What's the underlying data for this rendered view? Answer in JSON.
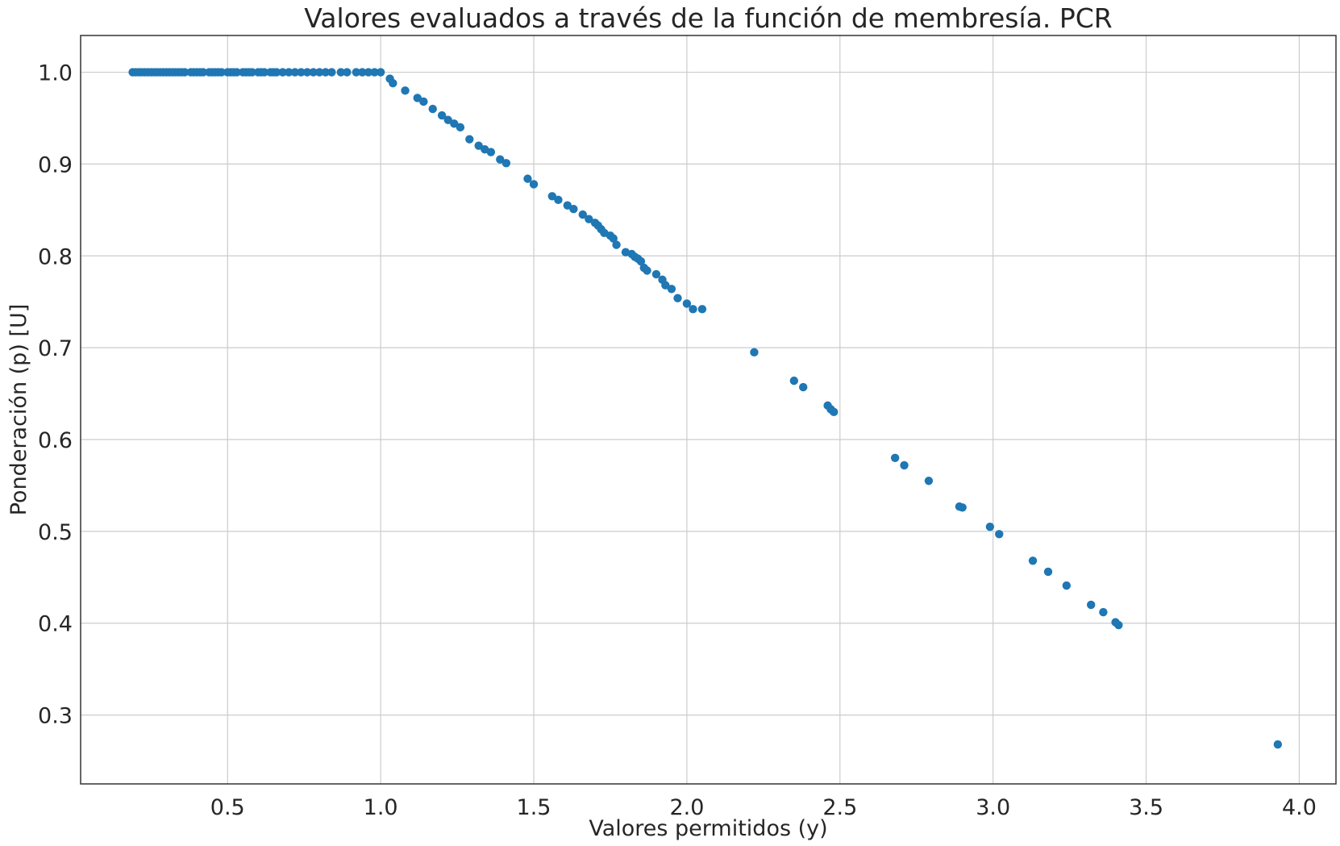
{
  "chart_data": {
    "type": "scatter",
    "title": "Valores evaluados a través de la función de membresía. PCR",
    "xlabel": "Valores permitidos (y)",
    "ylabel": "Ponderación (p) [U]",
    "xlim": [
      0.02,
      4.12
    ],
    "ylim": [
      0.225,
      1.04
    ],
    "xticks": [
      0.5,
      1.0,
      1.5,
      2.0,
      2.5,
      3.0,
      3.5,
      4.0
    ],
    "xtick_labels": [
      "0.5",
      "1.0",
      "1.5",
      "2.0",
      "2.5",
      "3.0",
      "3.5",
      "4.0"
    ],
    "yticks": [
      0.3,
      0.4,
      0.5,
      0.6,
      0.7,
      0.8,
      0.9,
      1.0
    ],
    "ytick_labels": [
      "0.3",
      "0.4",
      "0.5",
      "0.6",
      "0.7",
      "0.8",
      "0.9",
      "1.0"
    ],
    "grid": true,
    "marker_color": "#1f77b4",
    "series": [
      {
        "x": [
          0.19,
          0.2,
          0.21,
          0.22,
          0.23,
          0.24,
          0.25,
          0.26,
          0.27,
          0.28,
          0.29,
          0.3,
          0.31,
          0.32,
          0.33,
          0.34,
          0.35,
          0.36,
          0.38,
          0.39,
          0.4,
          0.41,
          0.42,
          0.44,
          0.45,
          0.46,
          0.47,
          0.48,
          0.5,
          0.51,
          0.52,
          0.53,
          0.55,
          0.56,
          0.57,
          0.58,
          0.6,
          0.61,
          0.62,
          0.64,
          0.65,
          0.66,
          0.68,
          0.7,
          0.72,
          0.74,
          0.76,
          0.78,
          0.8,
          0.82,
          0.84,
          0.87,
          0.89,
          0.92,
          0.94,
          0.96,
          0.98,
          1.0,
          1.03,
          1.04,
          1.08,
          1.12,
          1.14,
          1.17,
          1.2,
          1.22,
          1.24,
          1.26,
          1.29,
          1.32,
          1.34,
          1.36,
          1.39,
          1.41,
          1.48,
          1.5,
          1.56,
          1.58,
          1.61,
          1.63,
          1.66,
          1.68,
          1.7,
          1.71,
          1.72,
          1.73,
          1.75,
          1.76,
          1.77,
          1.8,
          1.82,
          1.83,
          1.84,
          1.85,
          1.86,
          1.87,
          1.9,
          1.92,
          1.93,
          1.95,
          1.97,
          2.0,
          2.02,
          2.05,
          2.22,
          2.35,
          2.38,
          2.46,
          2.47,
          2.48,
          2.68,
          2.71,
          2.79,
          2.89,
          2.9,
          2.99,
          3.02,
          3.13,
          3.18,
          3.24,
          3.32,
          3.36,
          3.4,
          3.41,
          3.93
        ],
        "y": [
          1.0,
          1.0,
          1.0,
          1.0,
          1.0,
          1.0,
          1.0,
          1.0,
          1.0,
          1.0,
          1.0,
          1.0,
          1.0,
          1.0,
          1.0,
          1.0,
          1.0,
          1.0,
          1.0,
          1.0,
          1.0,
          1.0,
          1.0,
          1.0,
          1.0,
          1.0,
          1.0,
          1.0,
          1.0,
          1.0,
          1.0,
          1.0,
          1.0,
          1.0,
          1.0,
          1.0,
          1.0,
          1.0,
          1.0,
          1.0,
          1.0,
          1.0,
          1.0,
          1.0,
          1.0,
          1.0,
          1.0,
          1.0,
          1.0,
          1.0,
          1.0,
          1.0,
          1.0,
          1.0,
          1.0,
          1.0,
          1.0,
          1.0,
          0.993,
          0.988,
          0.98,
          0.972,
          0.968,
          0.96,
          0.953,
          0.948,
          0.944,
          0.94,
          0.927,
          0.92,
          0.916,
          0.913,
          0.905,
          0.901,
          0.884,
          0.878,
          0.865,
          0.861,
          0.855,
          0.851,
          0.845,
          0.84,
          0.836,
          0.833,
          0.829,
          0.825,
          0.822,
          0.819,
          0.812,
          0.804,
          0.802,
          0.799,
          0.797,
          0.794,
          0.787,
          0.784,
          0.78,
          0.774,
          0.768,
          0.764,
          0.754,
          0.748,
          0.742,
          0.742,
          0.695,
          0.664,
          0.657,
          0.637,
          0.633,
          0.63,
          0.58,
          0.572,
          0.555,
          0.527,
          0.526,
          0.505,
          0.497,
          0.468,
          0.456,
          0.441,
          0.42,
          0.412,
          0.401,
          0.398,
          0.268
        ]
      }
    ]
  }
}
